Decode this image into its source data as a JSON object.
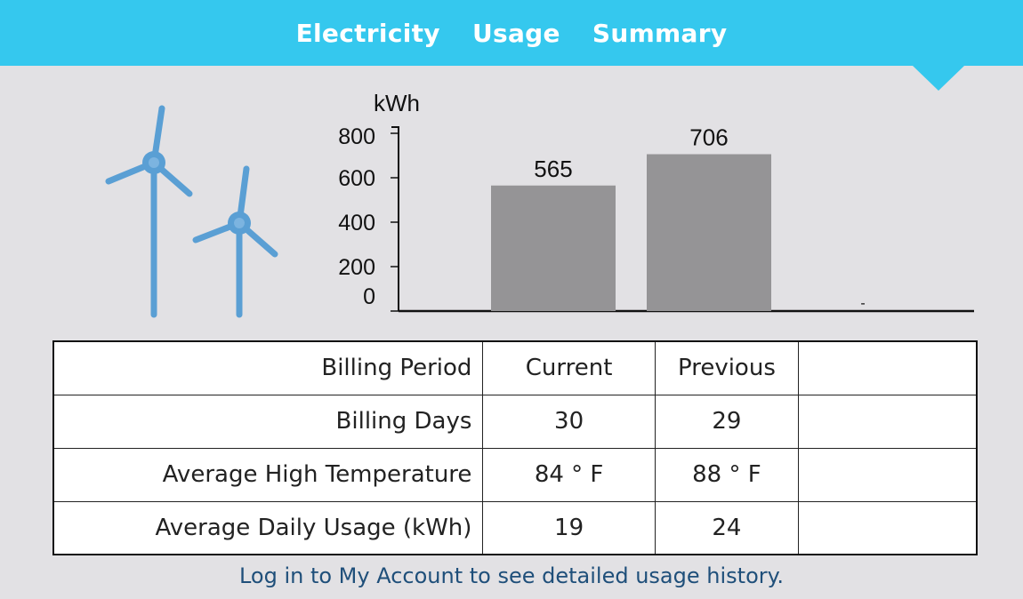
{
  "header": {
    "title": "Electricity  Usage  Summary",
    "background_color": "#35c8ee"
  },
  "decoration": {
    "icon": "wind-turbines",
    "color": "#5a9fd4"
  },
  "chart_data": {
    "type": "bar",
    "ylabel": "kWh",
    "ylim": [
      0,
      800
    ],
    "yticks": [
      "800",
      "600",
      "400",
      "200",
      "0"
    ],
    "categories": [
      "Current",
      "Previous",
      ""
    ],
    "values": [
      565,
      706,
      0
    ],
    "data_labels": [
      "565",
      "706",
      "-"
    ],
    "bar_color": "#959496",
    "grid": false
  },
  "table": {
    "rows": [
      {
        "label": "Billing Period",
        "current": "Current",
        "previous": "Previous",
        "extra": ""
      },
      {
        "label": "Billing Days",
        "current": "30",
        "previous": "29",
        "extra": ""
      },
      {
        "label": "Average High Temperature",
        "current": "84 ° F",
        "previous": "88 ° F",
        "extra": ""
      },
      {
        "label": "Average Daily Usage (kWh)",
        "current": "19",
        "previous": "24",
        "extra": ""
      }
    ]
  },
  "footer": {
    "text": "Log in to My Account to see detailed usage history.",
    "color": "#1f4f7a"
  }
}
